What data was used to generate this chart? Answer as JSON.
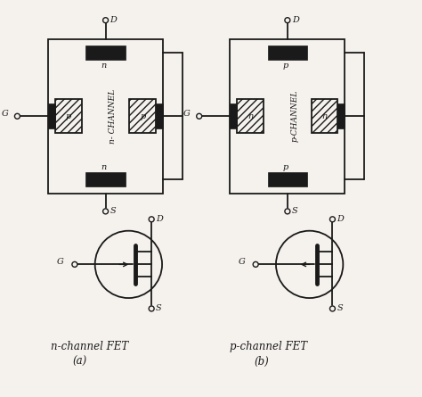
{
  "bg_color": "#f5f2ee",
  "line_color": "#1a1a1a",
  "fig_width": 4.74,
  "fig_height": 4.45,
  "dpi": 100,
  "nchannel_fet_label": "n-channel FET",
  "pchannel_fet_label": "p-channel FET",
  "a_label": "(a)",
  "b_label": "(b)",
  "n_ch_text": "n- CHANNEL",
  "p_ch_text": "p- CHANNEL",
  "n_top_label_n": "n",
  "n_bot_label_n": "n",
  "n_gate_label": "p",
  "p_top_label": "p",
  "p_bot_label": "p",
  "p_gate_label": "n"
}
